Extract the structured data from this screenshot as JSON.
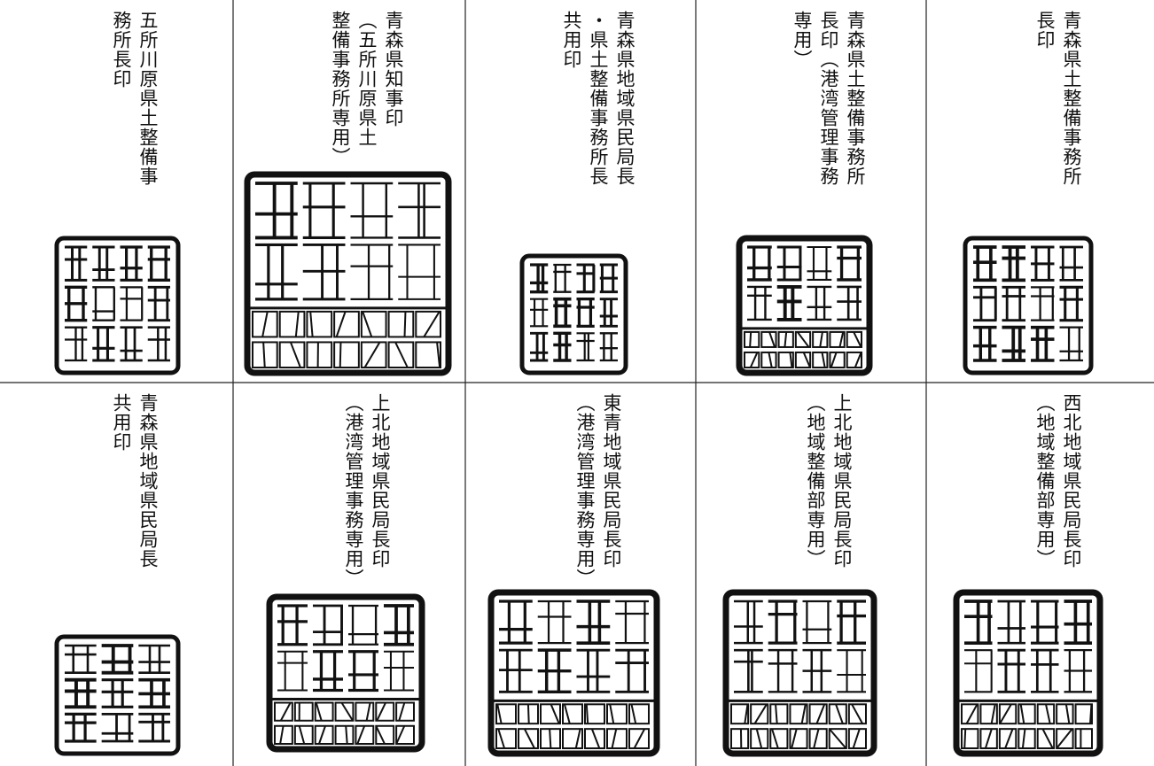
{
  "table": {
    "rows": [
      [
        {
          "lines": [
            "五所川原県土整備事",
            "務所長印"
          ]
        },
        {
          "lines": [
            "青森県知事印",
            "（五所川原県土",
            "整備事務所専用）"
          ]
        },
        {
          "lines": [
            "青森県地域県民局長",
            "・県土整備事務所長",
            "共用印"
          ]
        },
        {
          "lines": [
            "青森県土整備事務所",
            "長印（港湾管理事務",
            "専用）"
          ]
        },
        {
          "lines": [
            "青森県土整備事務所",
            "長印"
          ]
        }
      ],
      [
        {
          "lines": [
            "青森県地域県民局長",
            "共用印"
          ]
        },
        {
          "lines": [
            "上北地域県民局長印",
            "（港湾管理事務専用）"
          ]
        },
        {
          "lines": [
            "東青地域県民局長印",
            "（港湾管理事務専用）"
          ]
        },
        {
          "lines": [
            "上北地域県民局長印",
            "（地域整備部専用）"
          ]
        },
        {
          "lines": [
            "西北地域県民局長印",
            "（地域整備部専用）"
          ]
        }
      ]
    ]
  }
}
